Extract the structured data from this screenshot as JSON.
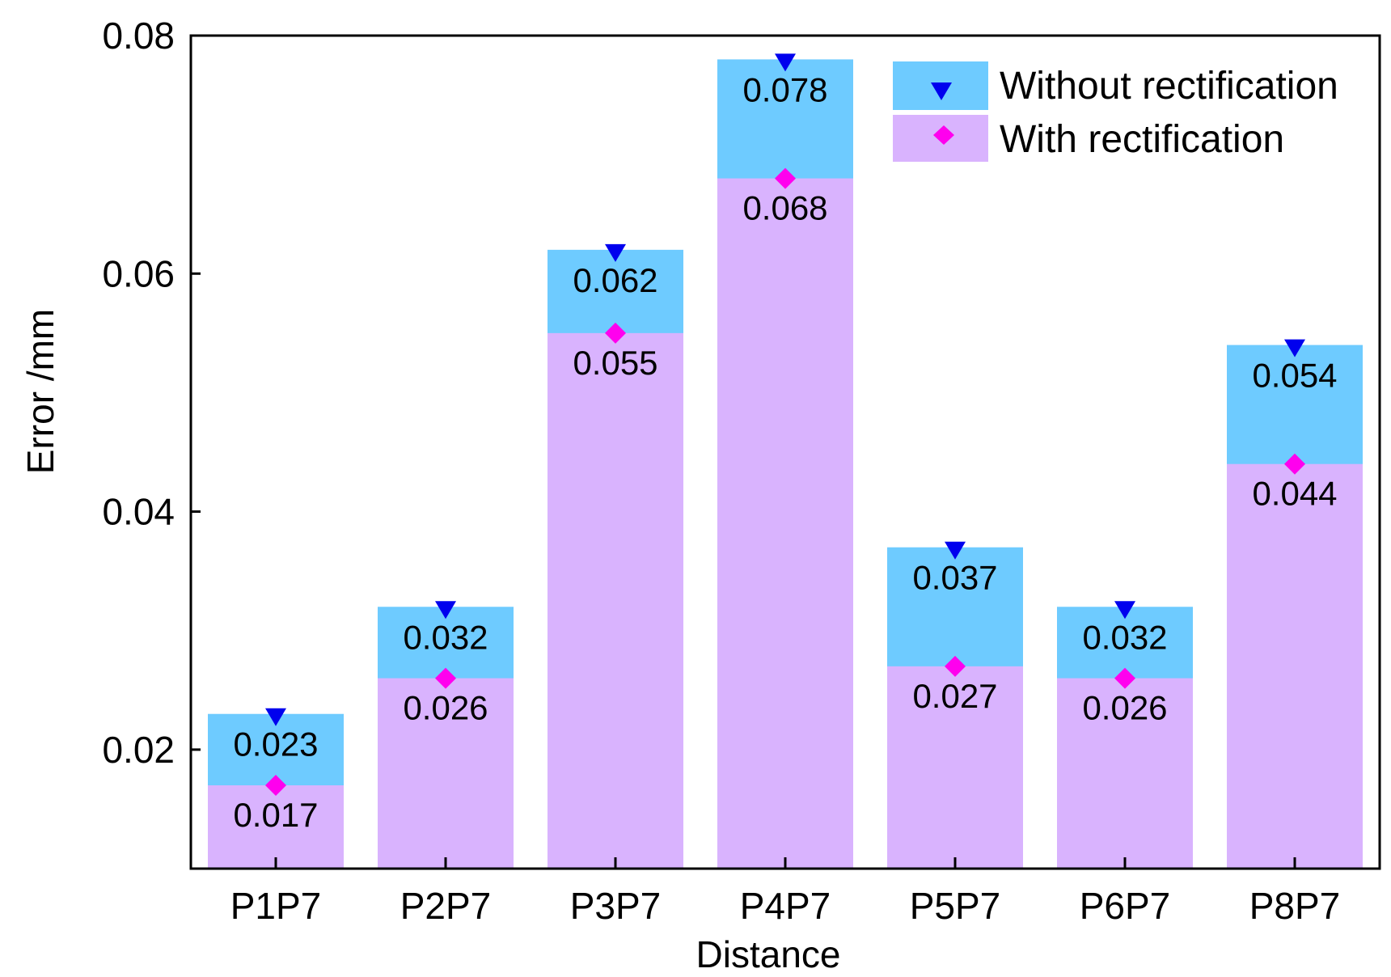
{
  "chart_data": {
    "type": "bar",
    "title": "",
    "xlabel": "Distance",
    "ylabel": "Error /mm",
    "ylim": [
      0.01,
      0.08
    ],
    "yticks": [
      "0.02",
      "0.04",
      "0.06",
      "0.08"
    ],
    "ytick_values": [
      0.02,
      0.04,
      0.06,
      0.08
    ],
    "categories": [
      "P1P7",
      "P2P7",
      "P3P7",
      "P4P7",
      "P5P7",
      "P6P7",
      "P8P7"
    ],
    "series": [
      {
        "name": "Without rectification",
        "values": [
          0.023,
          0.032,
          0.062,
          0.078,
          0.037,
          0.032,
          0.054
        ],
        "labels": [
          "0.023",
          "0.032",
          "0.062",
          "0.078",
          "0.037",
          "0.032",
          "0.054"
        ],
        "bar_color": "#6ecbff",
        "marker": "triangle-down",
        "marker_color": "#0000ee"
      },
      {
        "name": "With rectification",
        "values": [
          0.017,
          0.026,
          0.055,
          0.068,
          0.027,
          0.026,
          0.044
        ],
        "labels": [
          "0.017",
          "0.026",
          "0.055",
          "0.068",
          "0.027",
          "0.026",
          "0.044"
        ],
        "bar_color": "#d9b3fe",
        "marker": "diamond",
        "marker_color": "#ff00ee"
      }
    ],
    "legend_position": "top-right",
    "grid": false
  }
}
